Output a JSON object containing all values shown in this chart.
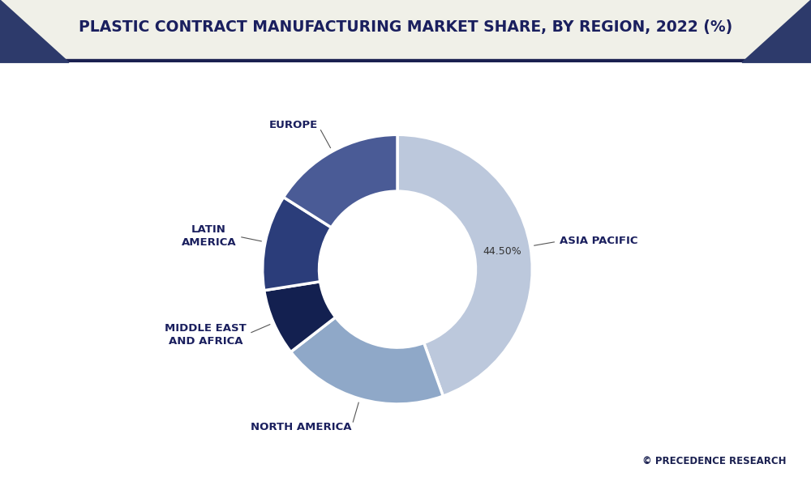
{
  "title": "PLASTIC CONTRACT MANUFACTURING MARKET SHARE, BY REGION, 2022 (%)",
  "title_color": "#1a1f5e",
  "bg_color": "#ffffff",
  "header_bg": "#f0f0e8",
  "header_border_color": "#1a2050",
  "tri_color": "#2d3a6b",
  "segments": [
    {
      "label": "ASIA PACIFIC",
      "value": 44.5,
      "color": "#bcc8dc",
      "pct_label": "44.50%"
    },
    {
      "label": "NORTH AMERICA",
      "value": 20.0,
      "color": "#8fa8c8",
      "pct_label": ""
    },
    {
      "label": "MIDDLE EAST\nAND AFRICA",
      "value": 8.0,
      "color": "#132050",
      "pct_label": ""
    },
    {
      "label": "LATIN\nAMERICA",
      "value": 11.5,
      "color": "#2b3d7a",
      "pct_label": ""
    },
    {
      "label": "EUROPE",
      "value": 16.0,
      "color": "#4a5b96",
      "pct_label": ""
    }
  ],
  "watermark": "© PRECEDENCE RESEARCH",
  "watermark_color": "#1a2050",
  "start_angle": 90,
  "label_fontsize": 9.5,
  "title_fontsize": 13.5
}
